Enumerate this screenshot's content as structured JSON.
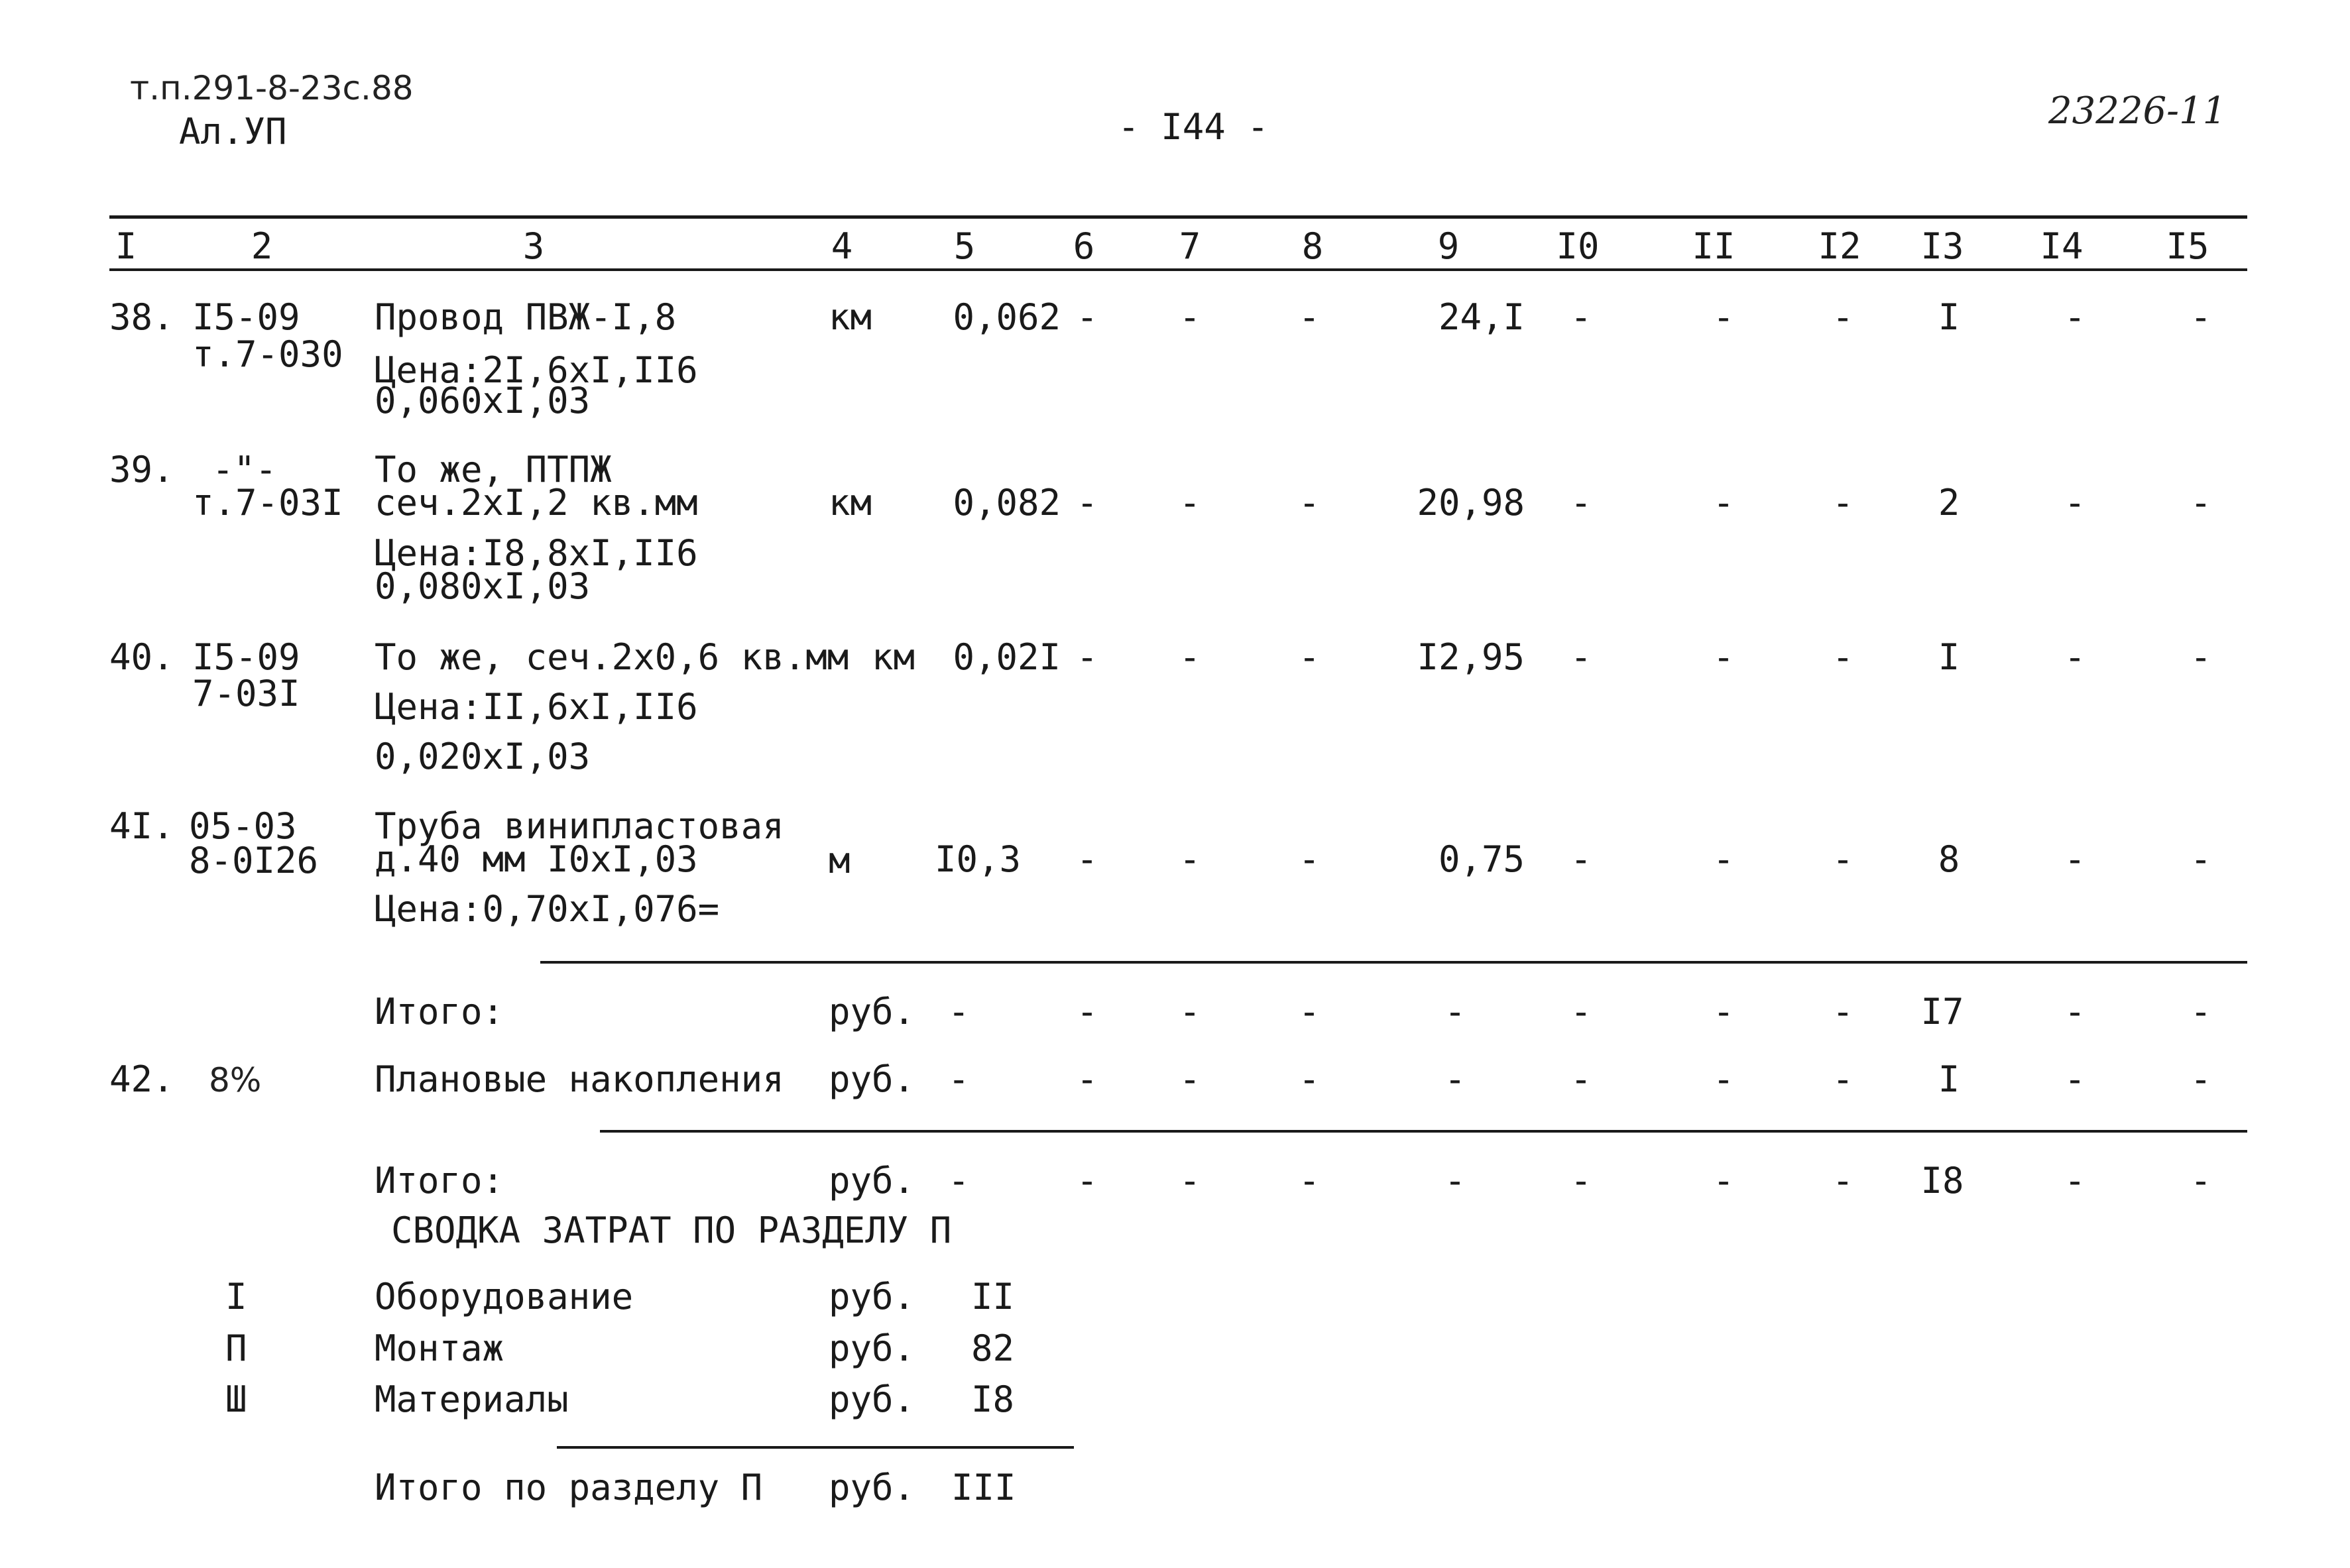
{
  "header": {
    "project_code": "т.п.291-8-23с.88",
    "album": "Ал.УП",
    "page_number": "- I44 -",
    "sheet_number": "23226-11"
  },
  "column_headers": [
    "I",
    "2",
    "3",
    "4",
    "5",
    "6",
    "7",
    "8",
    "9",
    "I0",
    "II",
    "I2",
    "I3",
    "I4",
    "I5"
  ],
  "rows": {
    "r38": {
      "num": "38.",
      "code1": "I5-09",
      "code2": "т.7-030",
      "desc1": "Провод ПВЖ-I,8",
      "desc2": "Цена:2I,6хI,II6",
      "desc3": "0,060хI,03",
      "unit": "км",
      "c5": "0,062",
      "c6": "-",
      "c7": "-",
      "c8": "-",
      "c9": "24,I",
      "c10": "-",
      "c11": "-",
      "c12": "-",
      "c13": "I",
      "c14": "-",
      "c15": "-"
    },
    "r39": {
      "num": "39.",
      "code1": "-\"-",
      "code2": "т.7-03I",
      "desc1": "То же, ПТПЖ",
      "desc2": "сеч.2хI,2 кв.мм",
      "desc3": "Цена:I8,8хI,II6",
      "desc4": "0,080хI,03",
      "unit": "км",
      "c5": "0,082",
      "c6": "-",
      "c7": "-",
      "c8": "-",
      "c9": "20,98",
      "c10": "-",
      "c11": "-",
      "c12": "-",
      "c13": "2",
      "c14": "-",
      "c15": "-"
    },
    "r40": {
      "num": "40.",
      "code1": "I5-09",
      "code2": "7-03I",
      "desc1": "То же, сеч.2х0,6 кв.мм",
      "desc2": "Цена:II,6хI,II6",
      "desc3": "0,020хI,03",
      "unit": "км",
      "c5": "0,02I",
      "c6": "-",
      "c7": "-",
      "c8": "-",
      "c9": "I2,95",
      "c10": "-",
      "c11": "-",
      "c12": "-",
      "c13": "I",
      "c14": "-",
      "c15": "-"
    },
    "r41": {
      "num": "4I.",
      "code1": "05-03",
      "code2": "8-0I26",
      "desc1": "Труба винипластовая",
      "desc2": "д.40 мм I0хI,03",
      "desc3": "Цена:0,70хI,076=",
      "unit": "м",
      "c5": "I0,3",
      "c6": "-",
      "c7": "-",
      "c8": "-",
      "c9": "0,75",
      "c10": "-",
      "c11": "-",
      "c12": "-",
      "c13": "8",
      "c14": "-",
      "c15": "-"
    },
    "total1": {
      "desc": "Итого:",
      "unit": "руб.",
      "c5": "-",
      "c6": "-",
      "c7": "-",
      "c8": "-",
      "c9": "-",
      "c10": "-",
      "c11": "-",
      "c12": "-",
      "c13": "I7",
      "c14": "-",
      "c15": "-"
    },
    "r42": {
      "num": "42.",
      "code1": "8%",
      "desc": "Плановые накопления",
      "unit": "руб.",
      "c5": "-",
      "c6": "-",
      "c7": "-",
      "c8": "-",
      "c9": "-",
      "c10": "-",
      "c11": "-",
      "c12": "-",
      "c13": "I",
      "c14": "-",
      "c15": "-"
    },
    "total2": {
      "desc": "Итого:",
      "unit": "руб.",
      "c5": "-",
      "c6": "-",
      "c7": "-",
      "c8": "-",
      "c9": "-",
      "c10": "-",
      "c11": "-",
      "c12": "-",
      "c13": "I8",
      "c14": "-",
      "c15": "-"
    }
  },
  "summary": {
    "title": "СВОДКА ЗАТРАТ ПО РАЗДЕЛУ П",
    "items": [
      {
        "num": "I",
        "label": "Оборудование",
        "unit": "руб.",
        "value": "II"
      },
      {
        "num": "П",
        "label": "Монтаж",
        "unit": "руб.",
        "value": "82"
      },
      {
        "num": "Ш",
        "label": "Материалы",
        "unit": "руб.",
        "value": "I8"
      }
    ],
    "total": {
      "label": "Итого по разделу П",
      "unit": "руб.",
      "value": "III"
    }
  }
}
